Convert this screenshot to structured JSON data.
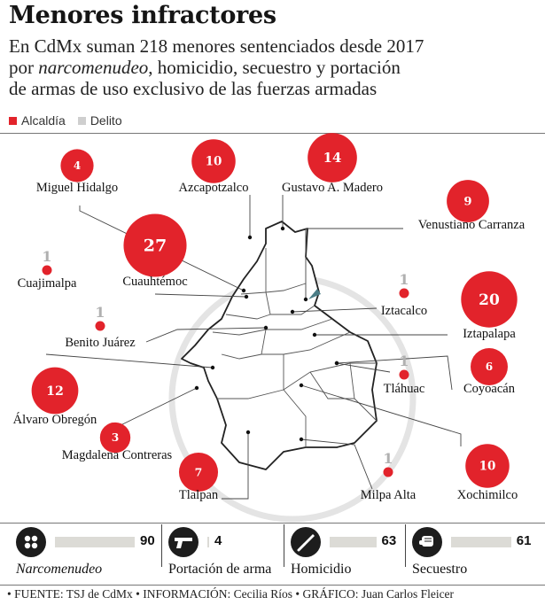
{
  "title": "Menores infractores",
  "subtitle_parts": {
    "line1": "En CdMx suman 218 menores sentenciados desde 2017",
    "line2_pre": "por ",
    "line2_em": "narcomenudeo",
    "line2_post": ", homicidio, secuestro y portación",
    "line3": "de armas de uso exclusivo de las fuerzas armadas"
  },
  "legend": [
    {
      "label": "Alcaldía",
      "color": "#e2232b"
    },
    {
      "label": "Delito",
      "color": "#cfcfcf"
    }
  ],
  "colors": {
    "accent": "#e2232b",
    "gray": "#b0b0b0",
    "bar_track": "#dcdbd6",
    "icon_bg": "#1d1d1d"
  },
  "chart_data": [
    {
      "type": "scatter",
      "description_key": "alcaldias",
      "boroughs": [
        {
          "name": "Miguel Hidalgo",
          "value": 4
        },
        {
          "name": "Azcapotzalco",
          "value": 10
        },
        {
          "name": "Gustavo A. Madero",
          "value": 14
        },
        {
          "name": "Venustiano Carranza",
          "value": 9
        },
        {
          "name": "Cuajimalpa",
          "value": 1
        },
        {
          "name": "Cuauhtémoc",
          "value": 27
        },
        {
          "name": "Iztacalco",
          "value": 1
        },
        {
          "name": "Iztapalapa",
          "value": 20
        },
        {
          "name": "Benito Juárez",
          "value": 1
        },
        {
          "name": "Coyoacán",
          "value": 6
        },
        {
          "name": "Tláhuac",
          "value": 1
        },
        {
          "name": "Álvaro Obregón",
          "value": 12
        },
        {
          "name": "Magdalena Contreras",
          "value": 3
        },
        {
          "name": "Tlalpan",
          "value": 7
        },
        {
          "name": "Milpa Alta",
          "value": 1
        },
        {
          "name": "Xochimilco",
          "value": 10
        }
      ]
    },
    {
      "type": "bar",
      "categories": [
        "Narcomenudeo",
        "Portación de arma",
        "Homicidio",
        "Secuestro"
      ],
      "values": [
        90,
        4,
        63,
        61
      ],
      "icons": [
        "pills-icon",
        "gun-icon",
        "knife-icon",
        "fist-icon"
      ]
    }
  ],
  "footer": "• FUENTE: TSJ de CdMx • INFORMACIÓN: Cecilia Ríos • GRÁFICO: Juan Carlos Fleicer"
}
